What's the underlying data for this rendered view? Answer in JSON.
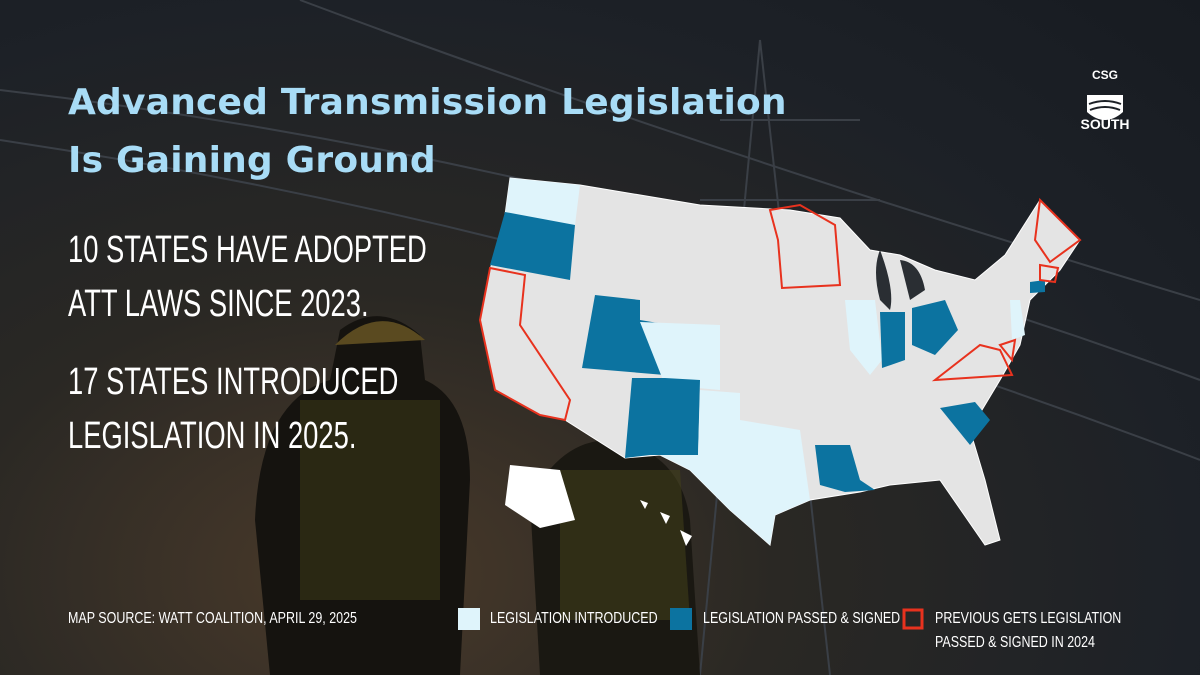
{
  "header": {
    "title_lines": [
      "Advanced Transmission Legislation",
      "Is Gaining Ground"
    ]
  },
  "logo": {
    "top": "CSG",
    "bottom": "SOUTH"
  },
  "statements": [
    [
      "10 STATES HAVE ADOPTED",
      "ATT LAWS SINCE 2023."
    ],
    [
      "17 STATES INTRODUCED",
      "LEGISLATION IN 2025."
    ]
  ],
  "source": "MAP SOURCE: WATT COALITION, APRIL 29, 2025",
  "legend": [
    {
      "label": "LEGISLATION INTRODUCED"
    },
    {
      "label": "LEGISLATION PASSED & SIGNED"
    },
    {
      "label_lines": [
        "PREVIOUS GETS LEGISLATION",
        "PASSED & SIGNED IN 2024"
      ]
    }
  ]
}
